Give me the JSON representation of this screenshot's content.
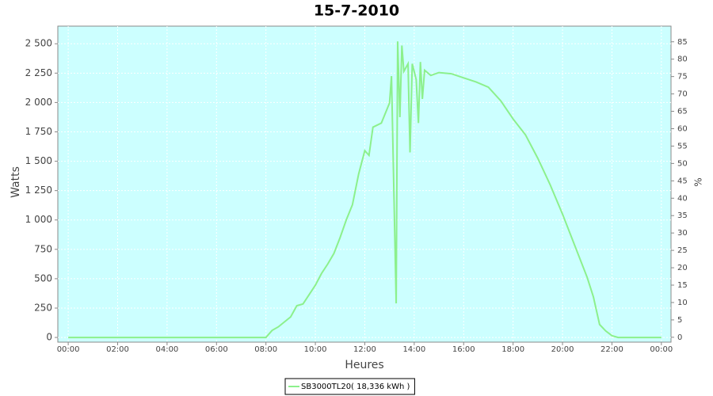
{
  "chart_data": {
    "type": "line",
    "title": "15-7-2010",
    "x_label": "Heures",
    "y_label": "Watts",
    "y2_label": "%",
    "x": [
      0,
      8,
      8.25,
      8.5,
      9,
      9.25,
      9.5,
      9.75,
      10,
      10.25,
      10.5,
      10.75,
      11,
      11.25,
      11.5,
      11.75,
      12,
      12.17,
      12.33,
      12.67,
      13,
      13.08,
      13.27,
      13.33,
      13.42,
      13.5,
      13.58,
      13.75,
      13.83,
      13.92,
      14.08,
      14.17,
      14.25,
      14.33,
      14.42,
      14.67,
      15,
      15.5,
      16,
      16.5,
      17,
      17.5,
      18,
      18.5,
      19,
      19.5,
      20,
      20.5,
      21,
      21.25,
      21.5,
      21.75,
      22,
      22.25,
      24
    ],
    "series": [
      {
        "name": "SB3000TL20( 18,336 kWh )",
        "color": "#8cf08c",
        "values": [
          0,
          0,
          60,
          90,
          175,
          270,
          285,
          365,
          445,
          545,
          625,
          715,
          850,
          1000,
          1130,
          1390,
          1590,
          1550,
          1790,
          1825,
          1995,
          2225,
          290,
          2520,
          1875,
          2485,
          2265,
          2330,
          1575,
          2330,
          2195,
          1825,
          2345,
          2030,
          2275,
          2230,
          2255,
          2245,
          2210,
          2175,
          2130,
          2015,
          1860,
          1725,
          1525,
          1300,
          1050,
          780,
          510,
          345,
          110,
          55,
          15,
          0,
          0
        ]
      }
    ],
    "xlim": [
      -0.42,
      24.39
    ],
    "xticks": [
      {
        "value": 0,
        "label": "00:00"
      },
      {
        "value": 2,
        "label": "02:00"
      },
      {
        "value": 4,
        "label": "04:00"
      },
      {
        "value": 6,
        "label": "06:00"
      },
      {
        "value": 8,
        "label": "08:00"
      },
      {
        "value": 10,
        "label": "10:00"
      },
      {
        "value": 12,
        "label": "12:00"
      },
      {
        "value": 14,
        "label": "14:00"
      },
      {
        "value": 16,
        "label": "16:00"
      },
      {
        "value": 18,
        "label": "18:00"
      },
      {
        "value": 20,
        "label": "20:00"
      },
      {
        "value": 22,
        "label": "22:00"
      },
      {
        "value": 24,
        "label": "00:00"
      }
    ],
    "ylim": [
      -40,
      2650
    ],
    "yticks": [
      0,
      250,
      500,
      750,
      {
        "value": 1000,
        "label": "1 000"
      },
      {
        "value": 1250,
        "label": "1 250"
      },
      {
        "value": 1500,
        "label": "1 500"
      },
      {
        "value": 1750,
        "label": "1 750"
      },
      {
        "value": 2000,
        "label": "2 000"
      },
      {
        "value": 2250,
        "label": "2 250"
      },
      {
        "value": 2500,
        "label": "2 500"
      }
    ],
    "y2lim": [
      -1.4,
      89.5
    ],
    "y2ticks": [
      0,
      5,
      10,
      15,
      20,
      25,
      30,
      35,
      40,
      45,
      50,
      55,
      60,
      65,
      70,
      75,
      80,
      85
    ],
    "plot_background": "#ccffff",
    "grid": true
  }
}
